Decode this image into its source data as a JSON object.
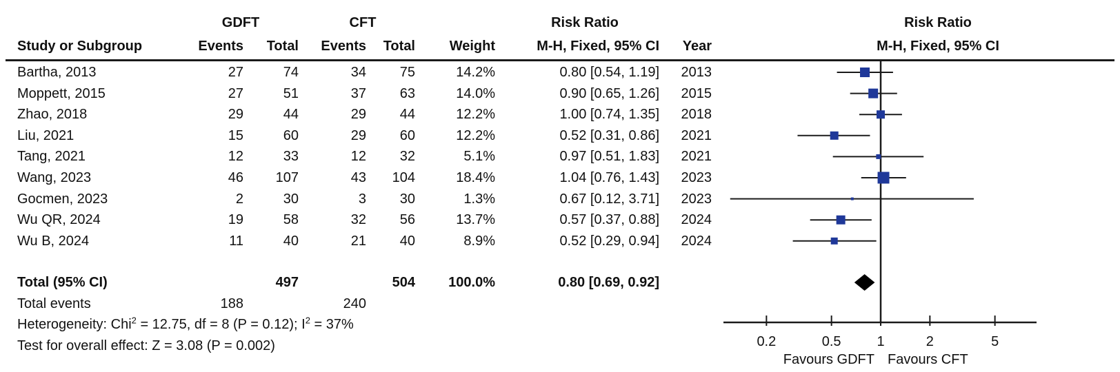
{
  "header": {
    "study": "Study or Subgroup",
    "group1": "GDFT",
    "group2": "CFT",
    "events": "Events",
    "total": "Total",
    "weight": "Weight",
    "risk_ratio": "Risk Ratio",
    "method": "M-H, Fixed, 95% CI",
    "year": "Year"
  },
  "footer": {
    "total_events_label": "Total events",
    "total_events_1": "188",
    "total_events_2": "240",
    "heterogeneity_pre": "Heterogeneity: Chi",
    "heterogeneity_sup1": "2",
    "heterogeneity_mid": " = 12.75, df = 8 (P = 0.12); I",
    "heterogeneity_sup2": "2",
    "heterogeneity_post": " = 37%",
    "overall_effect": "Test for overall effect: Z = 3.08 (P = 0.002)"
  },
  "colors": {
    "marker_blue": "#1f3899",
    "diamond_black": "#000000",
    "line_black": "#1a1a1a",
    "text": "#111111"
  },
  "chart_data": {
    "type": "scatter",
    "subtype": "forest-plot",
    "title": "Risk Ratio",
    "effect_measure": "M-H, Fixed, 95% CI",
    "x_scale": "log",
    "x_ticks": [
      "0.2",
      "0.5",
      "1",
      "2",
      "5"
    ],
    "x_tick_values": [
      0.2,
      0.5,
      1,
      2,
      5
    ],
    "x_axis_range": [
      0.11,
      9
    ],
    "favours_left": "Favours GDFT",
    "favours_right": "Favours CFT",
    "grid": false,
    "studies": [
      {
        "name": "Bartha, 2013",
        "e1": "27",
        "t1": "74",
        "e2": "34",
        "t2": "75",
        "weight": "14.2%",
        "w": 14.2,
        "rr": 0.8,
        "lo": 0.54,
        "hi": 1.19,
        "ci_text": "0.80 [0.54, 1.19]",
        "year": "2013"
      },
      {
        "name": "Moppett, 2015",
        "e1": "27",
        "t1": "51",
        "e2": "37",
        "t2": "63",
        "weight": "14.0%",
        "w": 14.0,
        "rr": 0.9,
        "lo": 0.65,
        "hi": 1.26,
        "ci_text": "0.90 [0.65, 1.26]",
        "year": "2015"
      },
      {
        "name": "Zhao, 2018",
        "e1": "29",
        "t1": "44",
        "e2": "29",
        "t2": "44",
        "weight": "12.2%",
        "w": 12.2,
        "rr": 1.0,
        "lo": 0.74,
        "hi": 1.35,
        "ci_text": "1.00 [0.74, 1.35]",
        "year": "2018"
      },
      {
        "name": "Liu, 2021",
        "e1": "15",
        "t1": "60",
        "e2": "29",
        "t2": "60",
        "weight": "12.2%",
        "w": 12.2,
        "rr": 0.52,
        "lo": 0.31,
        "hi": 0.86,
        "ci_text": "0.52 [0.31, 0.86]",
        "year": "2021"
      },
      {
        "name": "Tang, 2021",
        "e1": "12",
        "t1": "33",
        "e2": "12",
        "t2": "32",
        "weight": "5.1%",
        "w": 5.1,
        "rr": 0.97,
        "lo": 0.51,
        "hi": 1.83,
        "ci_text": "0.97 [0.51, 1.83]",
        "year": "2021"
      },
      {
        "name": "Wang, 2023",
        "e1": "46",
        "t1": "107",
        "e2": "43",
        "t2": "104",
        "weight": "18.4%",
        "w": 18.4,
        "rr": 1.04,
        "lo": 0.76,
        "hi": 1.43,
        "ci_text": "1.04 [0.76, 1.43]",
        "year": "2023"
      },
      {
        "name": "Gocmen, 2023",
        "e1": "2",
        "t1": "30",
        "e2": "3",
        "t2": "30",
        "weight": "1.3%",
        "w": 1.3,
        "rr": 0.67,
        "lo": 0.12,
        "hi": 3.71,
        "ci_text": "0.67 [0.12, 3.71]",
        "year": "2023"
      },
      {
        "name": "Wu QR, 2024",
        "e1": "19",
        "t1": "58",
        "e2": "32",
        "t2": "56",
        "weight": "13.7%",
        "w": 13.7,
        "rr": 0.57,
        "lo": 0.37,
        "hi": 0.88,
        "ci_text": "0.57 [0.37, 0.88]",
        "year": "2024"
      },
      {
        "name": "Wu B, 2024",
        "e1": "11",
        "t1": "40",
        "e2": "21",
        "t2": "40",
        "weight": "8.9%",
        "w": 8.9,
        "rr": 0.52,
        "lo": 0.29,
        "hi": 0.94,
        "ci_text": "0.52 [0.29, 0.94]",
        "year": "2024"
      }
    ],
    "total": {
      "label": "Total (95% CI)",
      "t1": "497",
      "t2": "504",
      "weight": "100.0%",
      "rr": 0.8,
      "lo": 0.69,
      "hi": 0.92,
      "ci_text": "0.80 [0.69, 0.92]"
    }
  }
}
